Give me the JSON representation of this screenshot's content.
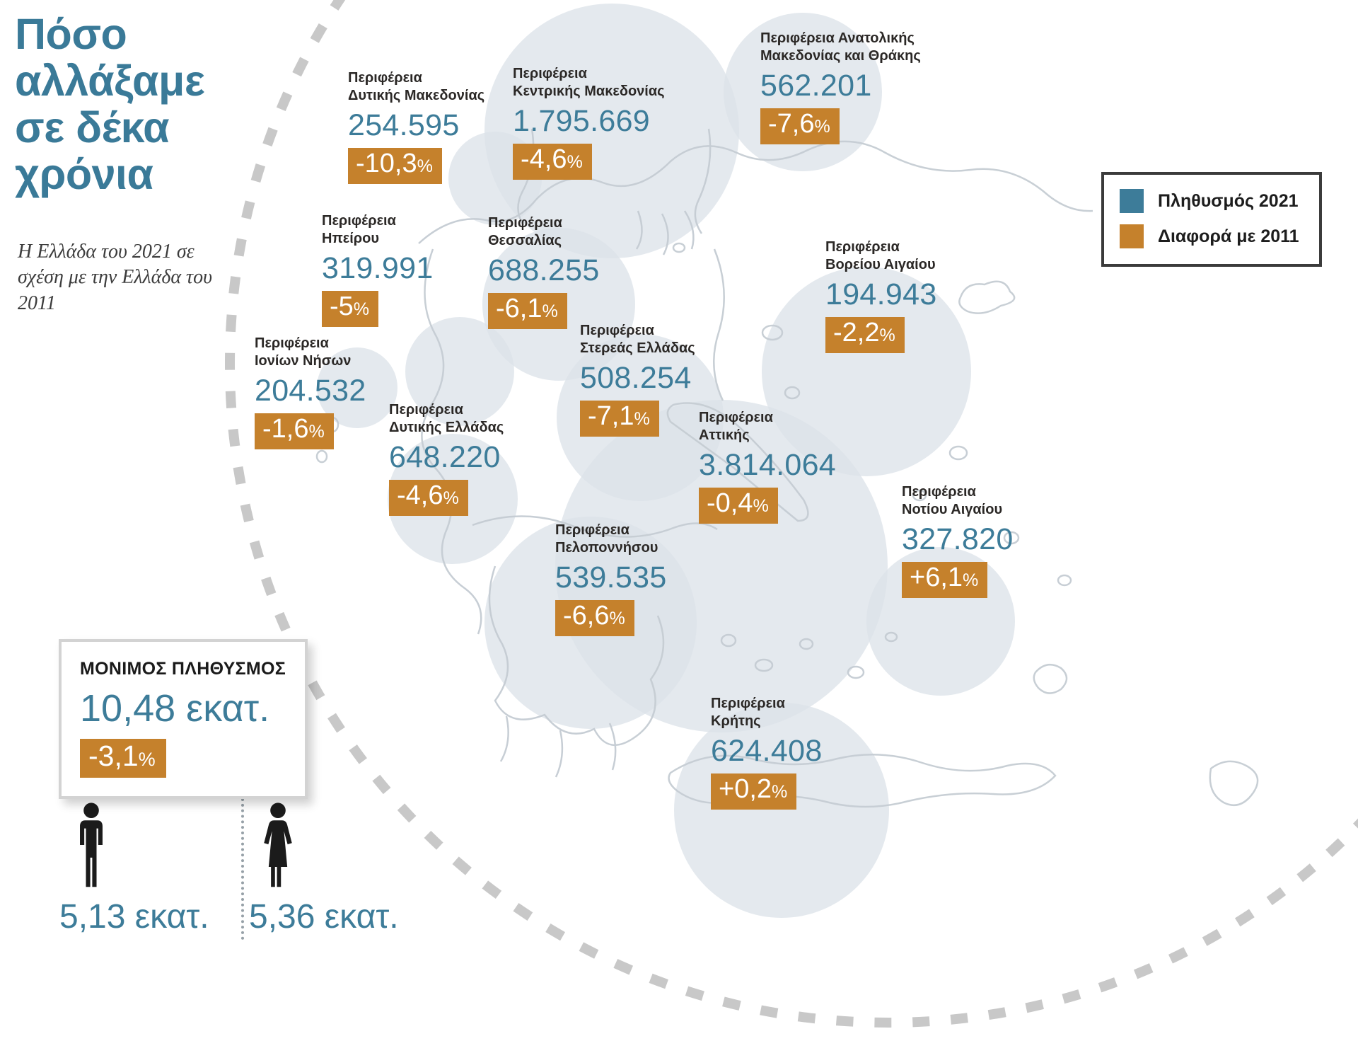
{
  "infographic": {
    "title": "Πόσο αλλάξαμε σε δέκα χρόνια",
    "subtitle": "Η Ελλάδα του 2021 σε σχέση με την Ελλάδα του 2011"
  },
  "legend": {
    "population_label": "Πληθυσμός 2021",
    "diff_label": "Διαφορά με 2011"
  },
  "summary": {
    "title": "ΜΟΝΙΜΟΣ ΠΛΗΘΥΣΜΟΣ",
    "value": "10,48 εκατ.",
    "change": "-3,1%"
  },
  "gender": {
    "male": "5,13 εκατ.",
    "female": "5,36 εκατ."
  },
  "colors": {
    "teal": "#3d7c99",
    "orange": "#c5812c",
    "label_dark": "#2b2826",
    "map_bubble": "#dce3e9",
    "coast_line": "#c5ccd3",
    "dashed_circle": "#c8c8c8"
  },
  "regions": [
    {
      "label1": "Περιφέρεια",
      "label2": "Δυτικής Μακεδονίας",
      "population": "254.595",
      "change": "-10,3%"
    },
    {
      "label1": "Περιφέρεια",
      "label2": "Κεντρικής Μακεδονίας",
      "population": "1.795.669",
      "change": "-4,6%"
    },
    {
      "label1": "Περιφέρεια Ανατολικής",
      "label2": "Μακεδονίας και Θράκης",
      "population": "562.201",
      "change": "-7,6%"
    },
    {
      "label1": "Περιφέρεια",
      "label2": "Ηπείρου",
      "population": "319.991",
      "change": "-5%"
    },
    {
      "label1": "Περιφέρεια",
      "label2": "Θεσσαλίας",
      "population": "688.255",
      "change": "-6,1%"
    },
    {
      "label1": "Περιφέρεια",
      "label2": "Βορείου Αιγαίου",
      "population": "194.943",
      "change": "-2,2%"
    },
    {
      "label1": "Περιφέρεια",
      "label2": "Ιονίων Νήσων",
      "population": "204.532",
      "change": "-1,6%"
    },
    {
      "label1": "Περιφέρεια",
      "label2": "Στερεάς Ελλάδας",
      "population": "508.254",
      "change": "-7,1%"
    },
    {
      "label1": "Περιφέρεια",
      "label2": "Δυτικής Ελλάδας",
      "population": "648.220",
      "change": "-4,6%"
    },
    {
      "label1": "Περιφέρεια",
      "label2": "Αττικής",
      "population": "3.814.064",
      "change": "-0,4%"
    },
    {
      "label1": "Περιφέρεια",
      "label2": "Πελοποννήσου",
      "population": "539.535",
      "change": "-6,6%"
    },
    {
      "label1": "Περιφέρεια",
      "label2": "Νοτίου Αιγαίου",
      "population": "327.820",
      "change": "+6,1%"
    },
    {
      "label1": "Περιφέρεια",
      "label2": "Κρήτης",
      "population": "624.408",
      "change": "+0,2%"
    }
  ],
  "chart_data": {
    "type": "map-bubbles",
    "title": "Πόσο αλλάξαμε σε δέκα χρόνια",
    "subtitle": "Η Ελλάδα του 2021 σε σχέση με την Ελλάδα του 2011",
    "legend": [
      "Πληθυσμός 2021",
      "Διαφορά με 2011"
    ],
    "total": {
      "label": "ΜΟΝΙΜΟΣ ΠΛΗΘΥΣΜΟΣ",
      "population_2021_millions": 10.48,
      "change_pct": -3.1,
      "male_millions": 5.13,
      "female_millions": 5.36
    },
    "series": [
      {
        "region": "Περιφέρεια Δυτικής Μακεδονίας",
        "population_2021": 254595,
        "change_pct": -10.3
      },
      {
        "region": "Περιφέρεια Κεντρικής Μακεδονίας",
        "population_2021": 1795669,
        "change_pct": -4.6
      },
      {
        "region": "Περιφέρεια Ανατολικής Μακεδονίας και Θράκης",
        "population_2021": 562201,
        "change_pct": -7.6
      },
      {
        "region": "Περιφέρεια Ηπείρου",
        "population_2021": 319991,
        "change_pct": -5.0
      },
      {
        "region": "Περιφέρεια Θεσσαλίας",
        "population_2021": 688255,
        "change_pct": -6.1
      },
      {
        "region": "Περιφέρεια Βορείου Αιγαίου",
        "population_2021": 194943,
        "change_pct": -2.2
      },
      {
        "region": "Περιφέρεια Ιονίων Νήσων",
        "population_2021": 204532,
        "change_pct": -1.6
      },
      {
        "region": "Περιφέρεια Στερεάς Ελλάδας",
        "population_2021": 508254,
        "change_pct": -7.1
      },
      {
        "region": "Περιφέρεια Δυτικής Ελλάδας",
        "population_2021": 648220,
        "change_pct": -4.6
      },
      {
        "region": "Περιφέρεια Αττικής",
        "population_2021": 3814064,
        "change_pct": -0.4
      },
      {
        "region": "Περιφέρεια Πελοποννήσου",
        "population_2021": 539535,
        "change_pct": -6.6
      },
      {
        "region": "Περιφέρεια Νοτίου Αιγαίου",
        "population_2021": 327820,
        "change_pct": 6.1
      },
      {
        "region": "Περιφέρεια Κρήτης",
        "population_2021": 624408,
        "change_pct": 0.2
      }
    ]
  }
}
